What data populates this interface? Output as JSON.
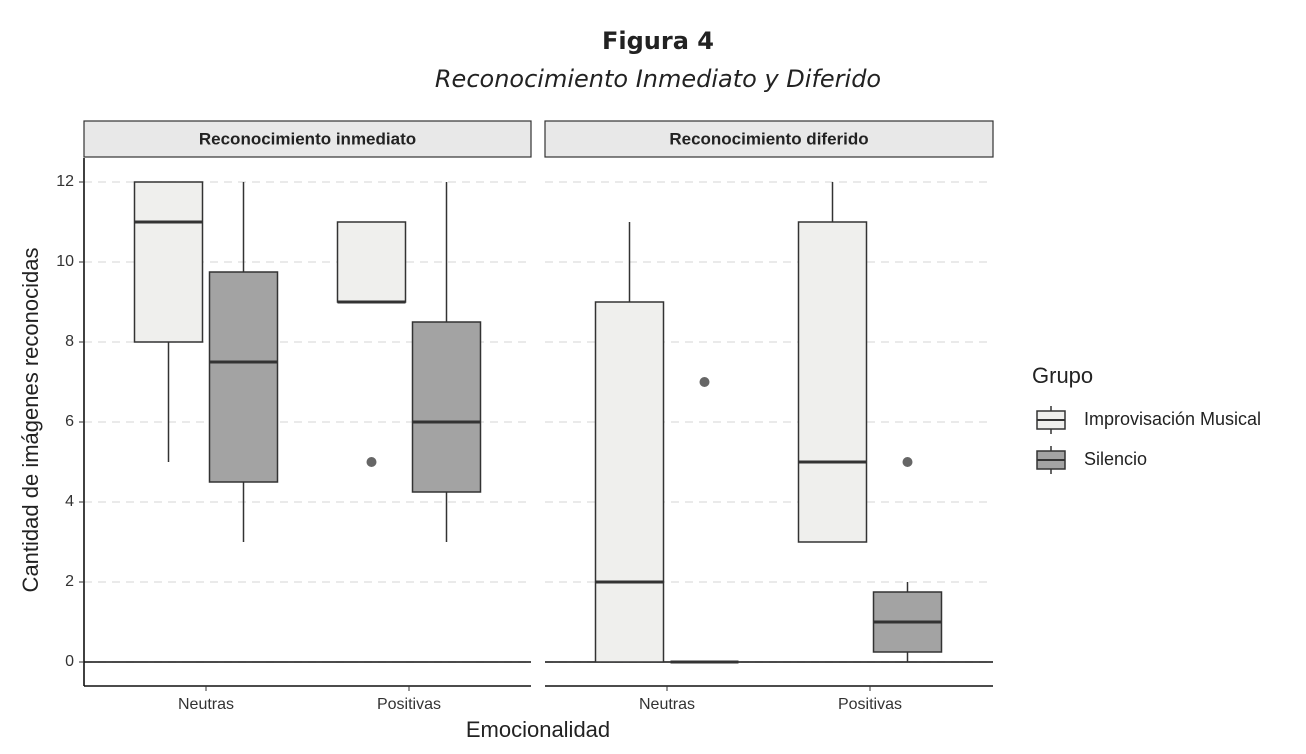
{
  "chart_data": {
    "type": "box",
    "title": "Figura 4",
    "subtitle": "Reconocimiento Inmediato y Diferido",
    "x_label": "Emocionalidad",
    "y_label": "Cantidad de imágenes reconocidas",
    "legend_title": "Grupo",
    "ylim": [
      -0.6,
      12.6
    ],
    "yticks": [
      0,
      2,
      4,
      6,
      8,
      10,
      12
    ],
    "grid": true,
    "reference_line": 0,
    "categories": [
      "Neutras",
      "Positivas"
    ],
    "series": [
      {
        "name": "Improvisación Musical",
        "color": "#efefed"
      },
      {
        "name": "Silencio",
        "color": "#a3a3a3"
      }
    ],
    "facets": [
      {
        "title": "Reconocimiento inmediato",
        "series": [
          {
            "values": [
              {
                "min": 5,
                "q1": 8,
                "median": 11,
                "q3": 12,
                "max": 12,
                "outliers": []
              },
              {
                "min": 9,
                "q1": 9,
                "median": 9,
                "q3": 11,
                "max": 11,
                "outliers": [
                  5
                ]
              }
            ]
          },
          {
            "values": [
              {
                "min": 3,
                "q1": 4.5,
                "median": 7.5,
                "q3": 9.75,
                "max": 12,
                "outliers": []
              },
              {
                "min": 3,
                "q1": 4.25,
                "median": 6,
                "q3": 8.5,
                "max": 12,
                "outliers": []
              }
            ]
          }
        ]
      },
      {
        "title": "Reconocimiento diferido",
        "series": [
          {
            "values": [
              {
                "min": 0,
                "q1": 0,
                "median": 2,
                "q3": 9,
                "max": 11,
                "outliers": []
              },
              {
                "min": 3,
                "q1": 3,
                "median": 5,
                "q3": 11,
                "max": 12,
                "outliers": []
              }
            ]
          },
          {
            "values": [
              {
                "min": 0,
                "q1": 0,
                "median": 0,
                "q3": 0,
                "max": 0,
                "outliers": [
                  7
                ]
              },
              {
                "min": 0,
                "q1": 0.25,
                "median": 1,
                "q3": 1.75,
                "max": 2,
                "outliers": [
                  5
                ]
              }
            ]
          }
        ]
      }
    ]
  }
}
